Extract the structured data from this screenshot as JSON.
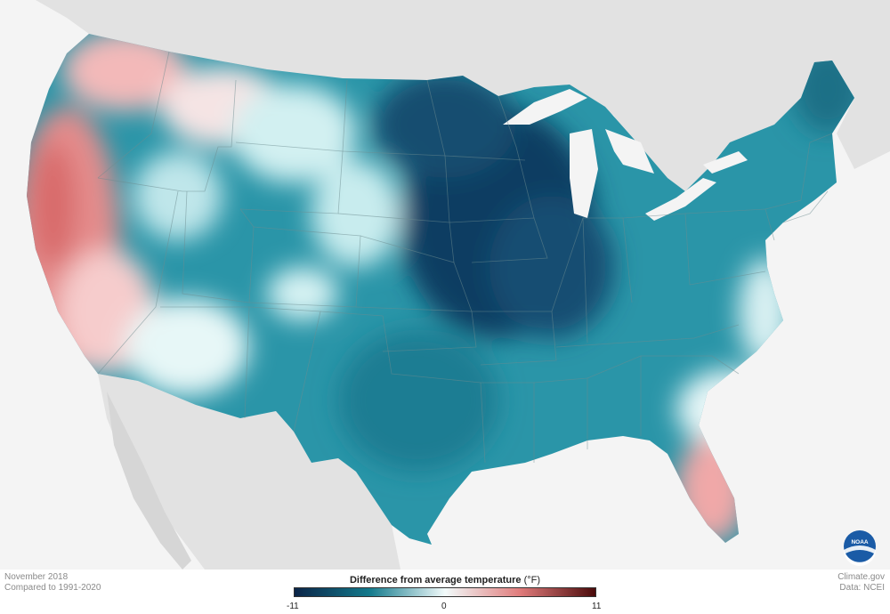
{
  "map": {
    "type": "choropleth-temperature-anomaly",
    "region": "Contiguous United States",
    "colors": {
      "cold_extreme": "#0b2447",
      "cold_mid": "#137a8c",
      "neutral": "#f2fbfb",
      "warm_mid": "#e07b7b",
      "warm_extreme": "#4a0a0a",
      "land_background": "#e2e2e2",
      "water": "#f4f4f4",
      "state_border": "#6d8c90"
    }
  },
  "legend": {
    "title": "Difference from average temperature",
    "unit": "(°F)",
    "min_label": "-11",
    "mid_label": "0",
    "max_label": "11",
    "min": -11,
    "max": 11
  },
  "footer": {
    "date_line": "November 2018",
    "compare_line": "Compared to 1991-2020",
    "credit_line": "Climate.gov",
    "source_line": "Data: NCEI"
  },
  "logo": {
    "text": "NOAA",
    "icon": "noaa-logo-icon"
  }
}
